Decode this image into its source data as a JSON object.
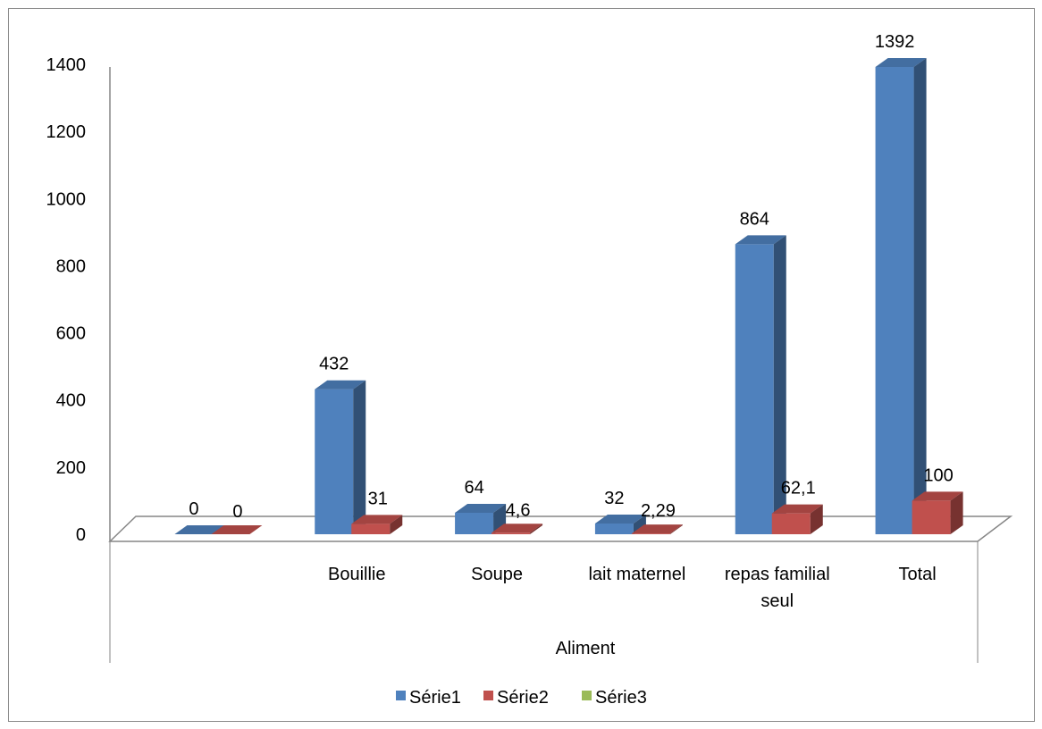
{
  "chart_data": {
    "type": "bar",
    "subtype": "3d-clustered-column",
    "categories": [
      "",
      "Bouillie",
      "Soupe",
      "lait maternel",
      "repas familial seul",
      "Total"
    ],
    "category_lines": [
      [
        ""
      ],
      [
        "Bouillie"
      ],
      [
        "Soupe"
      ],
      [
        "lait maternel"
      ],
      [
        "repas familial",
        "seul"
      ],
      [
        "Total"
      ]
    ],
    "series": [
      {
        "name": "Série1",
        "color": "#4f81bd",
        "values": [
          0,
          432,
          64,
          32,
          864,
          1392
        ],
        "labels": [
          "0",
          "432",
          "64",
          "32",
          "864",
          "1392"
        ]
      },
      {
        "name": "Série2",
        "color": "#c0504d",
        "values": [
          0,
          31,
          4.6,
          2.29,
          62.1,
          100
        ],
        "labels": [
          "0",
          "31",
          "4,6",
          "2,29",
          "62,1",
          "100"
        ]
      },
      {
        "name": "Série3",
        "color": "#9bbb59",
        "values": [
          null,
          null,
          null,
          null,
          null,
          null
        ],
        "labels": [
          "",
          "",
          "",
          "",
          "",
          ""
        ]
      }
    ],
    "xlabel": "Aliment",
    "ylabel": "",
    "ylim": [
      0,
      1400
    ],
    "yticks": [
      "0",
      "200",
      "400",
      "600",
      "800",
      "1000",
      "1200",
      "1400"
    ],
    "grid": false,
    "legend_position": "bottom"
  }
}
